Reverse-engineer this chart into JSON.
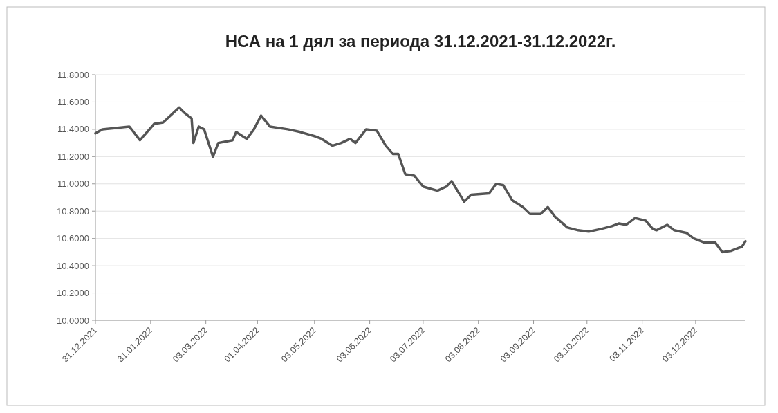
{
  "chart_data": {
    "type": "line",
    "title": "НСА на 1 дял за периода 31.12.2021-31.12.2022г.",
    "x": [
      "2021-12-31",
      "2022-01-04",
      "2022-01-19",
      "2022-01-25",
      "2022-02-02",
      "2022-02-07",
      "2022-02-16",
      "2022-02-19",
      "2022-02-23",
      "2022-02-24",
      "2022-02-27",
      "2022-03-02",
      "2022-03-07",
      "2022-03-10",
      "2022-03-18",
      "2022-03-20",
      "2022-03-26",
      "2022-03-30",
      "2022-04-03",
      "2022-04-08",
      "2022-04-18",
      "2022-04-25",
      "2022-05-03",
      "2022-05-07",
      "2022-05-13",
      "2022-05-18",
      "2022-05-23",
      "2022-05-26",
      "2022-06-01",
      "2022-06-07",
      "2022-06-12",
      "2022-06-16",
      "2022-06-19",
      "2022-06-23",
      "2022-06-28",
      "2022-07-03",
      "2022-07-11",
      "2022-07-16",
      "2022-07-19",
      "2022-07-26",
      "2022-07-30",
      "2022-08-09",
      "2022-08-13",
      "2022-08-17",
      "2022-08-22",
      "2022-08-28",
      "2022-09-01",
      "2022-09-07",
      "2022-09-11",
      "2022-09-15",
      "2022-09-22",
      "2022-09-28",
      "2022-10-04",
      "2022-10-11",
      "2022-10-17",
      "2022-10-21",
      "2022-10-25",
      "2022-10-30",
      "2022-11-05",
      "2022-11-09",
      "2022-11-11",
      "2022-11-17",
      "2022-11-21",
      "2022-11-28",
      "2022-12-02",
      "2022-12-08",
      "2022-12-14",
      "2022-12-18",
      "2022-12-23",
      "2022-12-29",
      "2022-12-31"
    ],
    "series": [
      {
        "color": "#555555",
        "values": [
          11.37,
          11.4,
          11.42,
          11.32,
          11.44,
          11.45,
          11.56,
          11.52,
          11.48,
          11.3,
          11.42,
          11.4,
          11.2,
          11.3,
          11.32,
          11.38,
          11.33,
          11.4,
          11.5,
          11.42,
          11.4,
          11.38,
          11.35,
          11.33,
          11.28,
          11.3,
          11.33,
          11.3,
          11.4,
          11.39,
          11.28,
          11.22,
          11.22,
          11.07,
          11.06,
          10.98,
          10.95,
          10.98,
          11.02,
          10.87,
          10.92,
          10.93,
          11.0,
          10.99,
          10.88,
          10.83,
          10.78,
          10.78,
          10.83,
          10.76,
          10.68,
          10.66,
          10.65,
          10.67,
          10.69,
          10.71,
          10.7,
          10.75,
          10.73,
          10.67,
          10.66,
          10.7,
          10.66,
          10.64,
          10.6,
          10.57,
          10.57,
          10.5,
          10.51,
          10.54,
          10.58
        ]
      }
    ],
    "xlim": [
      "2021-12-31",
      "2022-12-31"
    ],
    "xticks": [
      {
        "value": "2021-12-31",
        "label": "31.12.2021"
      },
      {
        "value": "2022-01-31",
        "label": "31.01.2022"
      },
      {
        "value": "2022-03-03",
        "label": "03.03.2022"
      },
      {
        "value": "2022-04-01",
        "label": "01.04.2022"
      },
      {
        "value": "2022-05-03",
        "label": "03.05.2022"
      },
      {
        "value": "2022-06-03",
        "label": "03.06.2022"
      },
      {
        "value": "2022-07-03",
        "label": "03.07.2022"
      },
      {
        "value": "2022-08-03",
        "label": "03.08.2022"
      },
      {
        "value": "2022-09-03",
        "label": "03.09.2022"
      },
      {
        "value": "2022-10-03",
        "label": "03.10.2022"
      },
      {
        "value": "2022-11-03",
        "label": "03.11.2022"
      },
      {
        "value": "2022-12-03",
        "label": "03.12.2022"
      }
    ],
    "ylim": [
      10.0,
      11.8
    ],
    "yticks": [
      {
        "value": 10.0,
        "label": "10.0000"
      },
      {
        "value": 10.2,
        "label": "10.2000"
      },
      {
        "value": 10.4,
        "label": "10.4000"
      },
      {
        "value": 10.6,
        "label": "10.6000"
      },
      {
        "value": 10.8,
        "label": "10.8000"
      },
      {
        "value": 11.0,
        "label": "11.0000"
      },
      {
        "value": 11.2,
        "label": "11.2000"
      },
      {
        "value": 11.4,
        "label": "11.4000"
      },
      {
        "value": 11.6,
        "label": "11.6000"
      },
      {
        "value": 11.8,
        "label": "11.8000"
      }
    ],
    "grid": "y",
    "marker": "none",
    "line_style": "solid"
  }
}
